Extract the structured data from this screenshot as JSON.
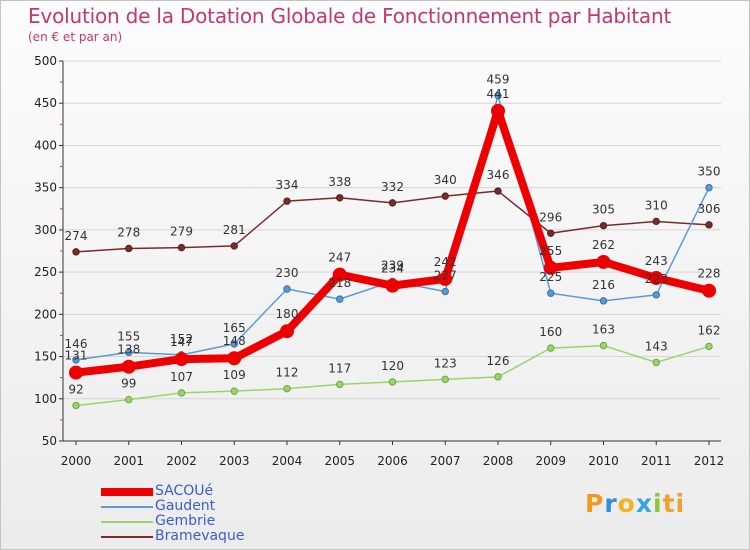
{
  "title": "Evolution de la Dotation Globale de Fonctionnement par Habitant",
  "subtitle": "(en € et par an)",
  "logo": "Proxiti",
  "logo_letters": [
    "P",
    "r",
    "o",
    "x",
    "i",
    "ti"
  ],
  "chart_data": {
    "type": "line",
    "title": "Evolution de la Dotation Globale de Fonctionnement par Habitant",
    "ylabel": "(en € et par an)",
    "xlabel": "",
    "ylim": [
      50,
      500
    ],
    "yticks": [
      50,
      100,
      150,
      200,
      250,
      300,
      350,
      400,
      450,
      500
    ],
    "x": [
      "2000",
      "2001",
      "2002",
      "2003",
      "2004",
      "2005",
      "2006",
      "2007",
      "2008",
      "2009",
      "2010",
      "2011",
      "2012"
    ],
    "series": [
      {
        "name": "Bramevaque",
        "color": "#7a2a2a",
        "values": [
          274,
          278,
          279,
          281,
          334,
          338,
          332,
          340,
          346,
          296,
          305,
          310,
          306
        ]
      },
      {
        "name": "Gembrie",
        "color": "#9bd46a",
        "values": [
          92,
          99,
          107,
          109,
          112,
          117,
          120,
          123,
          126,
          160,
          163,
          143,
          162
        ]
      },
      {
        "name": "Gaudent",
        "color": "#5b9bd5",
        "values": [
          146,
          155,
          152,
          165,
          230,
          218,
          239,
          227,
          459,
          225,
          216,
          223,
          350
        ]
      },
      {
        "name": "SACOUé",
        "color": "#ee0000",
        "values": [
          131,
          138,
          147,
          148,
          180,
          247,
          234,
          242,
          441,
          255,
          262,
          243,
          228
        ]
      }
    ]
  },
  "legend": [
    {
      "label": "SACOUé",
      "color": "#ee0000"
    },
    {
      "label": "Gaudent",
      "color": "#5b9bd5"
    },
    {
      "label": "Gembrie",
      "color": "#9bd46a"
    },
    {
      "label": "Bramevaque",
      "color": "#7a2a2a"
    }
  ]
}
